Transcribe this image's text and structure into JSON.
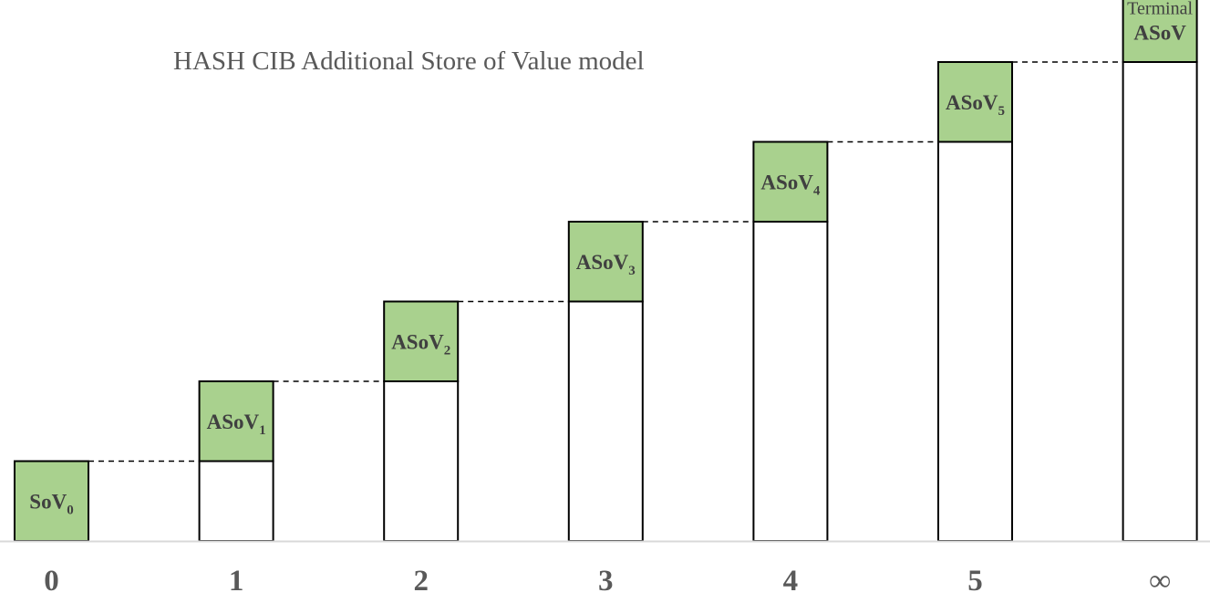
{
  "chart_data": {
    "type": "bar",
    "title": "HASH CIB Additional Store of Value model",
    "xlabel": "",
    "ylabel": "",
    "categories": [
      "0",
      "1",
      "2",
      "3",
      "4",
      "5",
      "∞"
    ],
    "ylim": [
      0,
      7
    ],
    "series": [
      {
        "role": "base",
        "values": [
          0,
          1,
          2,
          3,
          4,
          5,
          6
        ]
      },
      {
        "role": "increment",
        "values": [
          1,
          1,
          1,
          1,
          1,
          1,
          1
        ]
      }
    ],
    "segment_labels": [
      {
        "main": "SoV",
        "sub": "0",
        "prefix": ""
      },
      {
        "main": "ASoV",
        "sub": "1",
        "prefix": ""
      },
      {
        "main": "ASoV",
        "sub": "2",
        "prefix": ""
      },
      {
        "main": "ASoV",
        "sub": "3",
        "prefix": ""
      },
      {
        "main": "ASoV",
        "sub": "4",
        "prefix": ""
      },
      {
        "main": "ASoV",
        "sub": "5",
        "prefix": ""
      },
      {
        "main": "ASoV",
        "sub": "",
        "prefix": "Terminal"
      }
    ],
    "grid": false,
    "legend": "none",
    "connector_style": "dashed",
    "colors": {
      "increment_fill": "#a9d18e",
      "base_fill": "#ffffff",
      "bar_stroke": "#000000",
      "axis_line": "#d9d9d9",
      "text": "#595959"
    }
  }
}
